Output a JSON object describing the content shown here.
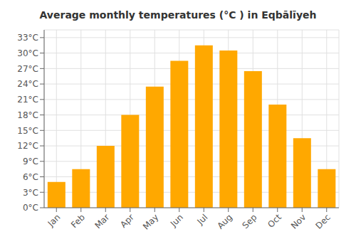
{
  "chart_data": {
    "type": "bar",
    "title": "Average monthly temperatures (°C ) in Eqbālīyeh",
    "categories": [
      "Jan",
      "Feb",
      "Mar",
      "Apr",
      "May",
      "Jun",
      "Jul",
      "Aug",
      "Sep",
      "Oct",
      "Nov",
      "Dec"
    ],
    "values": [
      5,
      7.5,
      12,
      18,
      23.5,
      28.5,
      31.5,
      30.5,
      26.5,
      20,
      13.5,
      7.5
    ],
    "color": "#FFA800",
    "ylim": [
      0,
      34.5
    ],
    "yticks": [
      {
        "value": 0,
        "label": "0°C"
      },
      {
        "value": 3,
        "label": "3°C"
      },
      {
        "value": 6,
        "label": "6°C"
      },
      {
        "value": 9,
        "label": "9°C"
      },
      {
        "value": 12,
        "label": "12°C"
      },
      {
        "value": 15,
        "label": "15°C"
      },
      {
        "value": 18,
        "label": "18°C"
      },
      {
        "value": 21,
        "label": "21°C"
      },
      {
        "value": 24,
        "label": "24°C"
      },
      {
        "value": 27,
        "label": "27°C"
      },
      {
        "value": 30,
        "label": "30°C"
      },
      {
        "value": 33,
        "label": "33°C"
      }
    ],
    "grid": true
  }
}
